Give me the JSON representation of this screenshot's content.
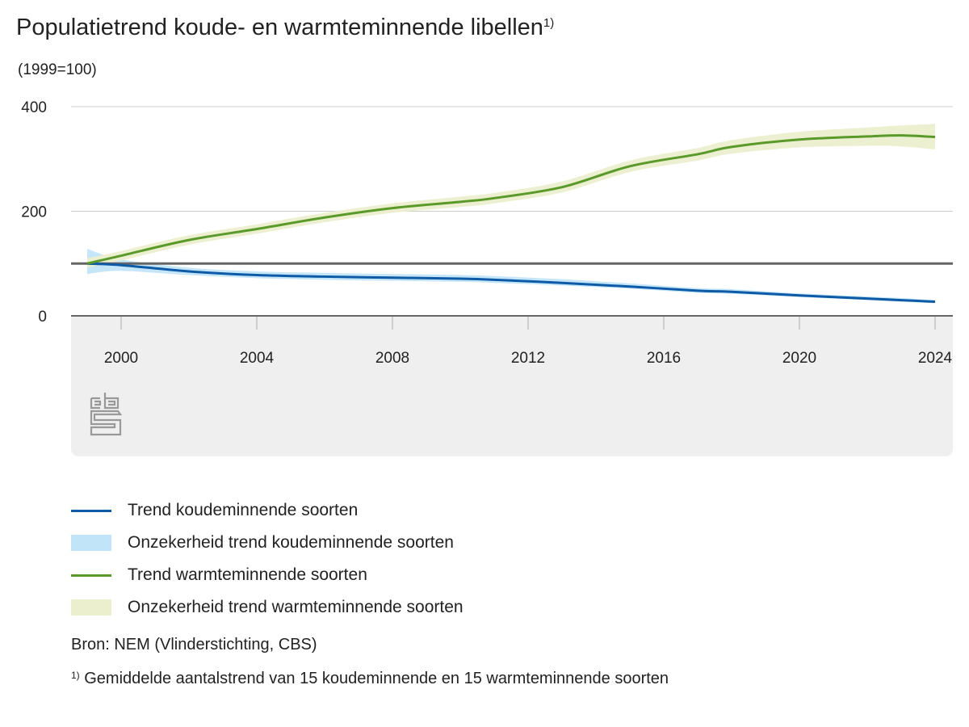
{
  "title": "Populatietrend koude- en warmteminnende libellen",
  "title_footnote_mark": "1)",
  "colors": {
    "cold_line": "#0d5aa7",
    "cold_band": "#c2e4f8",
    "warm_line": "#5a9a2a",
    "warm_band": "#ecefcd",
    "reference": "#666666",
    "plot_bg": "#efefef"
  },
  "chart_data": {
    "type": "line",
    "title": "Populatietrend koude- en warmteminnende libellen",
    "ylabel": "(1999=100)",
    "xlabel": "",
    "ylim": [
      0,
      400
    ],
    "xlim": [
      1999,
      2024
    ],
    "yticks": [
      "0",
      "200",
      "400"
    ],
    "xticks": [
      "2000",
      "2004",
      "2008",
      "2012",
      "2016",
      "2020",
      "2024"
    ],
    "reference_line": 100,
    "grid": true,
    "x": [
      1999,
      2000,
      2002,
      2004,
      2006,
      2008,
      2010,
      2011,
      2013,
      2015,
      2017,
      2018,
      2020,
      2022,
      2023,
      2024
    ],
    "series": [
      {
        "name": "Trend koudeminnende soorten",
        "kind": "line",
        "values": [
          100,
          97,
          85,
          78,
          75,
          73,
          71,
          69,
          63,
          56,
          48,
          46,
          39,
          33,
          30,
          27
        ]
      },
      {
        "name": "Onzekerheid trend koudeminnende soorten",
        "kind": "band",
        "lower": [
          80,
          86,
          78,
          72,
          69,
          67,
          65,
          63,
          58,
          52,
          44,
          42,
          36,
          30,
          27,
          24
        ],
        "upper": [
          128,
          108,
          92,
          85,
          82,
          80,
          78,
          76,
          70,
          62,
          53,
          51,
          43,
          37,
          34,
          30
        ]
      },
      {
        "name": "Trend warmteminnende soorten",
        "kind": "line",
        "values": [
          100,
          115,
          145,
          166,
          188,
          206,
          218,
          225,
          246,
          286,
          309,
          323,
          337,
          343,
          345,
          342
        ]
      },
      {
        "name": "Onzekerheid trend warmteminnende soorten",
        "kind": "band",
        "lower": [
          92,
          106,
          136,
          157,
          179,
          197,
          208,
          215,
          236,
          275,
          297,
          310,
          322,
          325,
          324,
          318
        ],
        "upper": [
          110,
          124,
          154,
          175,
          197,
          215,
          228,
          235,
          257,
          297,
          321,
          336,
          352,
          360,
          364,
          367
        ]
      }
    ]
  },
  "legend": [
    "Trend koudeminnende soorten",
    "Onzekerheid trend koudeminnende soorten",
    "Trend warmteminnende soorten",
    "Onzekerheid trend warmteminnende soorten"
  ],
  "source": "Bron: NEM (Vlinderstichting, CBS)",
  "footnote_mark": "1)",
  "footnote": "Gemiddelde aantalstrend van 15 koudeminnende en 15 warmteminnende soorten",
  "logo_text": "cbs"
}
